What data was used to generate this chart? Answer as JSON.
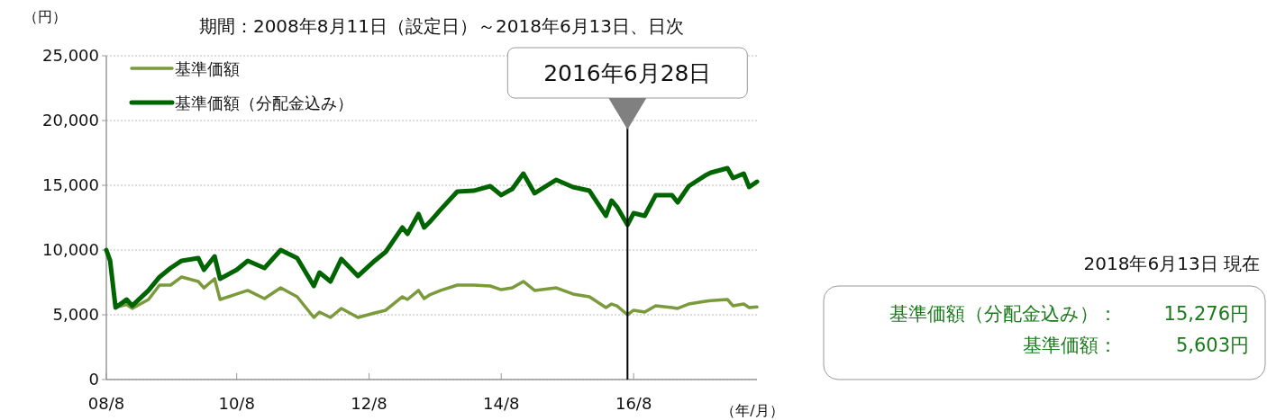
{
  "chart_data": {
    "type": "line",
    "title": "期間：2008年8月11日（設定日）～2018年6月13日、日次",
    "ylabel": "（円）",
    "xlabel": "（年/月）",
    "x": [
      "2008-08-11",
      "2008-09",
      "2008-10",
      "2008-12",
      "2009-01",
      "2009-04",
      "2009-06",
      "2009-08",
      "2009-10",
      "2010-01",
      "2010-02",
      "2010-04",
      "2010-05",
      "2010-08",
      "2010-10",
      "2011-01",
      "2011-04",
      "2011-07",
      "2011-10",
      "2011-11",
      "2012-01",
      "2012-03",
      "2012-06",
      "2012-09",
      "2012-11",
      "2013-02",
      "2013-03",
      "2013-05",
      "2013-06",
      "2013-07",
      "2013-09",
      "2013-12",
      "2014-03",
      "2014-06",
      "2014-08",
      "2014-10",
      "2014-12",
      "2015-02",
      "2015-06",
      "2015-09",
      "2015-12",
      "2016-03",
      "2016-04",
      "2016-05",
      "2016-06-28",
      "2016-08",
      "2016-10",
      "2016-12",
      "2017-03",
      "2017-04",
      "2017-06",
      "2017-09",
      "2017-10",
      "2018-01",
      "2018-02",
      "2018-04",
      "2018-05",
      "2018-06-13"
    ],
    "series": [
      {
        "name": "基準価額",
        "color": "#7a9a3c",
        "values": [
          10000,
          9170,
          5560,
          5800,
          5490,
          6180,
          7290,
          7290,
          7920,
          7570,
          7080,
          7780,
          6180,
          6600,
          6880,
          6250,
          7080,
          6390,
          4790,
          5210,
          4790,
          5490,
          4790,
          5140,
          5350,
          6390,
          6180,
          6880,
          6250,
          6530,
          6880,
          7290,
          7290,
          7220,
          6940,
          7080,
          7570,
          6880,
          7080,
          6600,
          6390,
          5560,
          5830,
          5690,
          5000,
          5350,
          5210,
          5690,
          5560,
          5490,
          5830,
          6040,
          6100,
          6180,
          5690,
          5830,
          5560,
          5603
        ]
      },
      {
        "name": "基準価額（分配金込み）",
        "color": "#006400",
        "values": [
          10000,
          9170,
          5560,
          6180,
          5700,
          6880,
          7920,
          8610,
          9170,
          9380,
          8470,
          9510,
          7780,
          8470,
          9170,
          8610,
          10000,
          9380,
          7220,
          8260,
          7570,
          9310,
          7990,
          9170,
          9860,
          11740,
          11250,
          12780,
          11740,
          12150,
          13130,
          14510,
          14580,
          14930,
          14240,
          14720,
          15900,
          14380,
          15420,
          14860,
          14580,
          12640,
          13820,
          13330,
          11940,
          12850,
          12640,
          14240,
          14240,
          13680,
          14930,
          15760,
          15970,
          16320,
          15560,
          15900,
          14860,
          15276
        ]
      }
    ],
    "xlim": [
      "2008-08-11",
      "2018-06-13"
    ],
    "xticks": [
      {
        "value": "2008-08-11",
        "label": "08/8"
      },
      {
        "value": "2010-08",
        "label": "10/8"
      },
      {
        "value": "2012-08",
        "label": "12/8"
      },
      {
        "value": "2014-08",
        "label": "14/8"
      },
      {
        "value": "2016-08",
        "label": "16/8"
      }
    ],
    "ylim": [
      0,
      25000
    ],
    "yticks": [
      {
        "value": 0,
        "label": "0"
      },
      {
        "value": 5000,
        "label": "5,000"
      },
      {
        "value": 10000,
        "label": "10,000"
      },
      {
        "value": 15000,
        "label": "15,000"
      },
      {
        "value": 20000,
        "label": "20,000"
      },
      {
        "value": 25000,
        "label": "25,000"
      }
    ],
    "grid": "y",
    "legend": "top left",
    "line_style": "solid",
    "ref_lines": [
      {
        "axis": "x",
        "value": "2016-06-28",
        "label": "2016年6月28日",
        "color": "#000000"
      }
    ],
    "annotations": [
      "2018年6月13日 現在",
      "基準価額（分配金込み）：",
      "15,276円",
      "基準価額：",
      "5,603円"
    ]
  }
}
